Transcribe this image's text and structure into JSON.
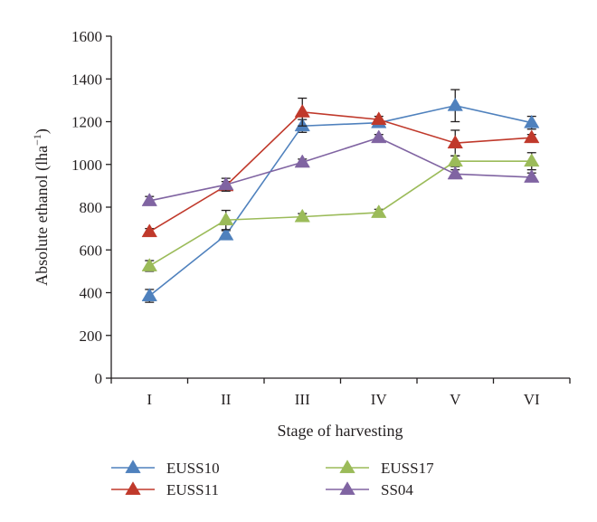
{
  "chart_data": {
    "type": "line",
    "categories": [
      "I",
      "II",
      "III",
      "IV",
      "V",
      "VI"
    ],
    "xlabel": "Stage of harvesting",
    "ylabel_main": "Absolute ethanol (lha",
    "ylabel_sup": "−1",
    "ylabel_close": ")",
    "ylim": [
      0,
      1600
    ],
    "yticks": [
      "0",
      "200",
      "400",
      "600",
      "800",
      "1000",
      "1200",
      "1400",
      "1600"
    ],
    "grid": false,
    "legend_position": "bottom",
    "series": [
      {
        "name": "EUSS10",
        "color": "#4f81bd",
        "values": [
          385,
          670,
          1180,
          1195,
          1275,
          1195
        ],
        "errors": [
          30,
          20,
          30,
          15,
          75,
          30
        ]
      },
      {
        "name": "EUSS11",
        "color": "#c0392b",
        "values": [
          685,
          900,
          1245,
          1210,
          1100,
          1125
        ],
        "errors": [
          15,
          20,
          65,
          15,
          60,
          15
        ]
      },
      {
        "name": "EUSS17",
        "color": "#9bbb59",
        "values": [
          525,
          740,
          755,
          775,
          1015,
          1015
        ],
        "errors": [
          25,
          45,
          15,
          15,
          25,
          40
        ]
      },
      {
        "name": "SS04",
        "color": "#8064a2",
        "values": [
          830,
          905,
          1010,
          1125,
          955,
          940
        ],
        "errors": [
          20,
          30,
          15,
          15,
          20,
          20
        ]
      }
    ]
  }
}
